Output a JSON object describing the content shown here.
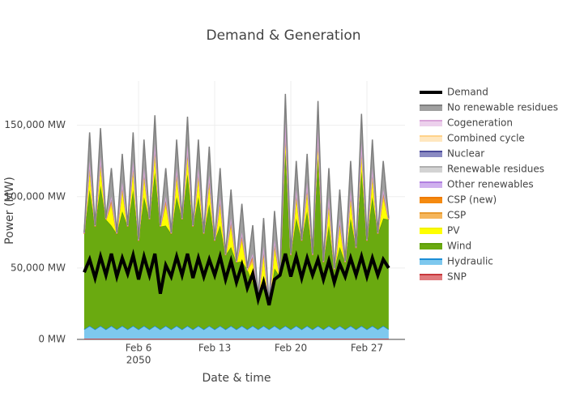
{
  "chart_data": {
    "type": "stacked_area",
    "title": "Demand & Generation",
    "x_label": "Date & time",
    "y_label": "Power (MW)",
    "xlim": [
      "2050-01-31 08:00",
      "2050-03-02 12:00"
    ],
    "xticks": [
      {
        "value": "2050-02-06 00:00",
        "label": "Feb 6",
        "sublabel": "2050"
      },
      {
        "value": "2050-02-13 00:00",
        "label": "Feb 13"
      },
      {
        "value": "2050-02-20 00:00",
        "label": "Feb 20"
      },
      {
        "value": "2050-02-27 00:00",
        "label": "Feb 27"
      }
    ],
    "ylim": [
      0,
      181000
    ],
    "yticks": [
      {
        "value": 0,
        "label": "0 MW"
      },
      {
        "value": 50000,
        "label": "50,000 MW"
      },
      {
        "value": 100000,
        "label": "100,000 MW"
      },
      {
        "value": 150000,
        "label": "150,000 MW"
      }
    ],
    "grid": true,
    "x": [
      "2050-02-01 00:00",
      "2050-02-01 12:00",
      "2050-02-02 00:00",
      "2050-02-02 12:00",
      "2050-02-03 00:00",
      "2050-02-03 12:00",
      "2050-02-04 00:00",
      "2050-02-04 12:00",
      "2050-02-05 00:00",
      "2050-02-05 12:00",
      "2050-02-06 00:00",
      "2050-02-06 12:00",
      "2050-02-07 00:00",
      "2050-02-07 12:00",
      "2050-02-08 00:00",
      "2050-02-08 12:00",
      "2050-02-09 00:00",
      "2050-02-09 12:00",
      "2050-02-10 00:00",
      "2050-02-10 12:00",
      "2050-02-11 00:00",
      "2050-02-11 12:00",
      "2050-02-12 00:00",
      "2050-02-12 12:00",
      "2050-02-13 00:00",
      "2050-02-13 12:00",
      "2050-02-14 00:00",
      "2050-02-14 12:00",
      "2050-02-15 00:00",
      "2050-02-15 12:00",
      "2050-02-16 00:00",
      "2050-02-16 12:00",
      "2050-02-17 00:00",
      "2050-02-17 12:00",
      "2050-02-18 00:00",
      "2050-02-18 12:00",
      "2050-02-19 00:00",
      "2050-02-19 12:00",
      "2050-02-20 00:00",
      "2050-02-20 12:00",
      "2050-02-21 00:00",
      "2050-02-21 12:00",
      "2050-02-22 00:00",
      "2050-02-22 12:00",
      "2050-02-23 00:00",
      "2050-02-23 12:00",
      "2050-02-24 00:00",
      "2050-02-24 12:00",
      "2050-02-25 00:00",
      "2050-02-25 12:00",
      "2050-02-26 00:00",
      "2050-02-26 12:00",
      "2050-02-27 00:00",
      "2050-02-27 12:00",
      "2050-02-28 00:00",
      "2050-02-28 12:00",
      "2050-03-01 00:00"
    ],
    "demand": {
      "name": "Demand",
      "color": "#000000",
      "values": [
        47000,
        56000,
        43000,
        58000,
        45000,
        60000,
        44000,
        57000,
        46000,
        59000,
        42000,
        58000,
        45000,
        60000,
        32000,
        52000,
        44000,
        58000,
        45000,
        60000,
        43000,
        57000,
        44000,
        56000,
        45000,
        58000,
        42000,
        55000,
        40000,
        52000,
        36000,
        46000,
        28000,
        40000,
        24000,
        42000,
        45000,
        60000,
        44000,
        58000,
        43000,
        57000,
        45000,
        56000,
        42000,
        55000,
        40000,
        53000,
        44000,
        57000,
        45000,
        58000,
        44000,
        57000,
        45000,
        56000,
        50000
      ]
    },
    "series": [
      {
        "name": "No renewable residues",
        "color": "#7f7f7f",
        "fill": "#a0a0a0",
        "values": [
          200,
          20000,
          200,
          20000,
          200,
          20000,
          200,
          20000,
          200,
          20000,
          200,
          20000,
          200,
          20000,
          200,
          20000,
          200,
          20000,
          200,
          20000,
          200,
          20000,
          200,
          20000,
          200,
          20000,
          200,
          20000,
          200,
          20000,
          200,
          20000,
          200,
          20000,
          200,
          20000,
          200,
          20000,
          200,
          20000,
          200,
          20000,
          200,
          20000,
          200,
          20000,
          200,
          20000,
          200,
          20000,
          200,
          20000,
          200,
          20000,
          200,
          20000,
          200
        ]
      },
      {
        "name": "Cogeneration",
        "color": "#d9a3d9",
        "fill": "#ecd0ec",
        "values": [
          0,
          0,
          0,
          0,
          0,
          0,
          0,
          0,
          0,
          0,
          0,
          0,
          0,
          0,
          0,
          0,
          0,
          0,
          0,
          0,
          0,
          0,
          0,
          0,
          0,
          0,
          0,
          0,
          0,
          0,
          0,
          0,
          0,
          0,
          0,
          0,
          0,
          0,
          0,
          0,
          0,
          0,
          0,
          0,
          0,
          0,
          0,
          0,
          0,
          0,
          0,
          0,
          0,
          0,
          0,
          0,
          0
        ]
      },
      {
        "name": "Combined cycle",
        "color": "#ffd28a",
        "fill": "#ffe7bf",
        "values": [
          0,
          500,
          0,
          500,
          0,
          500,
          0,
          500,
          0,
          500,
          0,
          500,
          0,
          500,
          0,
          500,
          0,
          500,
          0,
          500,
          0,
          500,
          0,
          500,
          0,
          500,
          0,
          500,
          0,
          500,
          0,
          500,
          0,
          500,
          0,
          500,
          0,
          500,
          0,
          500,
          0,
          500,
          0,
          500,
          0,
          500,
          0,
          500,
          0,
          500,
          0,
          500,
          0,
          500,
          0,
          500,
          0
        ]
      },
      {
        "name": "Nuclear",
        "color": "#4b4b9b",
        "fill": "#8a8ac2",
        "values": [
          0,
          0,
          0,
          0,
          0,
          0,
          0,
          0,
          0,
          0,
          0,
          0,
          0,
          0,
          0,
          0,
          0,
          0,
          0,
          0,
          0,
          0,
          0,
          0,
          0,
          0,
          0,
          0,
          0,
          0,
          0,
          0,
          0,
          0,
          0,
          0,
          0,
          0,
          0,
          0,
          0,
          0,
          0,
          0,
          0,
          0,
          0,
          0,
          0,
          0,
          0,
          0,
          0,
          0,
          0,
          0,
          0
        ]
      },
      {
        "name": "Renewable residues",
        "color": "#b0b0b0",
        "fill": "#d3d3d3",
        "values": [
          500,
          500,
          500,
          500,
          500,
          500,
          500,
          500,
          500,
          500,
          500,
          500,
          500,
          500,
          500,
          500,
          500,
          500,
          500,
          500,
          500,
          500,
          500,
          500,
          500,
          500,
          500,
          500,
          500,
          500,
          500,
          500,
          500,
          500,
          500,
          500,
          500,
          500,
          500,
          500,
          500,
          500,
          500,
          500,
          500,
          500,
          500,
          500,
          500,
          500,
          500,
          500,
          500,
          500,
          500,
          500,
          500
        ]
      },
      {
        "name": "Other renewables",
        "color": "#b07fe0",
        "fill": "#cfb0ee",
        "values": [
          300,
          300,
          300,
          300,
          300,
          300,
          300,
          300,
          300,
          300,
          300,
          300,
          300,
          300,
          300,
          300,
          300,
          300,
          300,
          300,
          300,
          300,
          300,
          300,
          300,
          300,
          300,
          300,
          300,
          300,
          300,
          300,
          300,
          300,
          300,
          300,
          300,
          300,
          300,
          300,
          300,
          300,
          300,
          300,
          300,
          300,
          300,
          300,
          300,
          300,
          300,
          300,
          300,
          300,
          300,
          300,
          300
        ]
      },
      {
        "name": "CSP (new)",
        "color": "#ef7b00",
        "fill": "#f58a10",
        "values": [
          0,
          2000,
          0,
          2000,
          0,
          2000,
          0,
          2000,
          0,
          2000,
          0,
          2000,
          0,
          2000,
          0,
          2000,
          0,
          2000,
          0,
          2000,
          0,
          2000,
          0,
          2000,
          0,
          2000,
          0,
          2000,
          0,
          2000,
          0,
          2000,
          0,
          2000,
          0,
          2000,
          0,
          2000,
          0,
          2000,
          0,
          2000,
          0,
          2000,
          0,
          2000,
          0,
          2000,
          0,
          2000,
          0,
          2000,
          0,
          2000,
          0,
          2000,
          0
        ]
      },
      {
        "name": "CSP",
        "color": "#e89a30",
        "fill": "#f5b65c",
        "values": [
          0,
          3000,
          0,
          3000,
          0,
          3000,
          0,
          3000,
          0,
          3000,
          0,
          3000,
          0,
          3000,
          0,
          3000,
          0,
          3000,
          0,
          3000,
          0,
          3000,
          0,
          3000,
          0,
          3000,
          0,
          3000,
          0,
          3000,
          0,
          3000,
          0,
          3000,
          0,
          3000,
          0,
          3000,
          0,
          3000,
          0,
          3000,
          0,
          3000,
          0,
          3000,
          0,
          3000,
          0,
          3000,
          0,
          3000,
          0,
          3000,
          0,
          3000,
          0
        ]
      },
      {
        "name": "PV",
        "color": "#f2f200",
        "fill": "#ffff00",
        "values": [
          0,
          14000,
          0,
          14000,
          0,
          14000,
          0,
          14000,
          0,
          14000,
          0,
          14000,
          0,
          14000,
          0,
          14000,
          0,
          14000,
          0,
          14000,
          0,
          14000,
          0,
          14000,
          0,
          14000,
          0,
          14000,
          0,
          14000,
          0,
          14000,
          0,
          14000,
          0,
          14000,
          0,
          14000,
          0,
          14000,
          0,
          14000,
          0,
          14000,
          0,
          14000,
          0,
          14000,
          0,
          14000,
          0,
          14000,
          0,
          14000,
          0,
          14000,
          0
        ]
      },
      {
        "name": "Wind",
        "color": "#5f9e0c",
        "fill": "#6aaa10",
        "values": [
          67000,
          95200,
          72000,
          98200,
          77000,
          70200,
          67000,
          80200,
          72000,
          95200,
          62000,
          90200,
          77000,
          107200,
          72000,
          70200,
          67000,
          90200,
          77000,
          106200,
          72000,
          90200,
          67000,
          85200,
          62000,
          70200,
          52000,
          55200,
          47000,
          45200,
          42000,
          30200,
          22000,
          35200,
          17000,
          40200,
          37000,
          122200,
          52000,
          75200,
          62000,
          80200,
          52000,
          117200,
          47000,
          70200,
          42000,
          55200,
          47000,
          75200,
          57000,
          108200,
          62000,
          90200,
          67000,
          75200,
          77000
        ]
      },
      {
        "name": "Hydraulic",
        "color": "#1c8ed6",
        "fill": "#7ec8ee",
        "values": [
          6500,
          9000,
          6500,
          9000,
          6500,
          9000,
          6500,
          9000,
          6500,
          9000,
          6500,
          9000,
          6500,
          9000,
          6500,
          9000,
          6500,
          9000,
          6500,
          9000,
          6500,
          9000,
          6500,
          9000,
          6500,
          9000,
          6500,
          9000,
          6500,
          9000,
          6500,
          9000,
          6500,
          9000,
          6500,
          9000,
          6500,
          9000,
          6500,
          9000,
          6500,
          9000,
          6500,
          9000,
          6500,
          9000,
          6500,
          9000,
          6500,
          9000,
          6500,
          9000,
          6500,
          9000,
          6500,
          9000,
          6500
        ]
      },
      {
        "name": "SNP",
        "color": "#c8383c",
        "fill": "#e07a7d",
        "values": [
          500,
          500,
          500,
          500,
          500,
          500,
          500,
          500,
          500,
          500,
          500,
          500,
          500,
          500,
          500,
          500,
          500,
          500,
          500,
          500,
          500,
          500,
          500,
          500,
          500,
          500,
          500,
          500,
          500,
          500,
          500,
          500,
          500,
          500,
          500,
          500,
          500,
          500,
          500,
          500,
          500,
          500,
          500,
          500,
          500,
          500,
          500,
          500,
          500,
          500,
          500,
          500,
          500,
          500,
          500,
          500,
          500
        ]
      }
    ]
  }
}
